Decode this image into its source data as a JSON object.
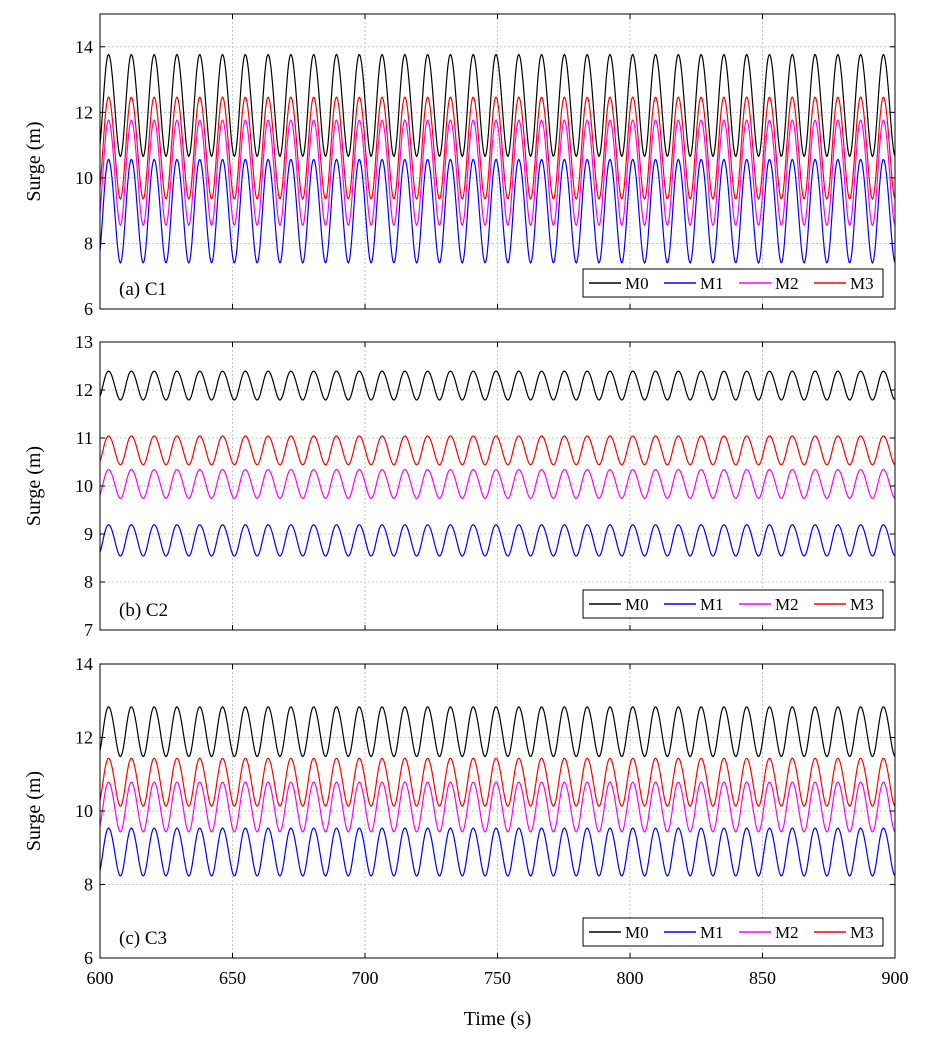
{
  "chart_data": [
    {
      "type": "line",
      "panel_label": "(a) C1",
      "ylabel": "Surge (m)",
      "xlabel": "",
      "xlim": [
        600,
        900
      ],
      "ylim": [
        6,
        15
      ],
      "xticks": [
        "600",
        "650",
        "700",
        "750",
        "800",
        "850",
        "900"
      ],
      "yticks": [
        "6",
        "8",
        "10",
        "12",
        "14"
      ],
      "legend": [
        "M0",
        "M1",
        "M2",
        "M3"
      ],
      "legend_position": "bottom-right",
      "period_s": 8.6,
      "series": [
        {
          "name": "M0",
          "color": "#000000",
          "min": 10.7,
          "max": 13.8
        },
        {
          "name": "M1",
          "color": "#0000ff",
          "min": 7.45,
          "max": 10.6
        },
        {
          "name": "M2",
          "color": "#ff00ff",
          "min": 8.6,
          "max": 11.8
        },
        {
          "name": "M3",
          "color": "#ff0000",
          "min": 9.4,
          "max": 12.5
        }
      ]
    },
    {
      "type": "line",
      "panel_label": "(b) C2",
      "ylabel": "Surge (m)",
      "xlabel": "",
      "xlim": [
        600,
        900
      ],
      "ylim": [
        7,
        13
      ],
      "xticks": [
        "600",
        "650",
        "700",
        "750",
        "800",
        "850",
        "900"
      ],
      "yticks": [
        "7",
        "8",
        "9",
        "10",
        "11",
        "12",
        "13"
      ],
      "legend": [
        "M0",
        "M1",
        "M2",
        "M3"
      ],
      "legend_position": "bottom-right",
      "period_s": 8.6,
      "series": [
        {
          "name": "M0",
          "color": "#000000",
          "min": 11.8,
          "max": 12.4
        },
        {
          "name": "M1",
          "color": "#0000ff",
          "min": 8.55,
          "max": 9.2
        },
        {
          "name": "M2",
          "color": "#ff00ff",
          "min": 9.75,
          "max": 10.35
        },
        {
          "name": "M3",
          "color": "#ff0000",
          "min": 10.45,
          "max": 11.05
        }
      ]
    },
    {
      "type": "line",
      "panel_label": "(c) C3",
      "ylabel": "Surge (m)",
      "xlabel": "Time (s)",
      "xlim": [
        600,
        900
      ],
      "ylim": [
        6,
        14
      ],
      "xticks": [
        "600",
        "650",
        "700",
        "750",
        "800",
        "850",
        "900"
      ],
      "yticks": [
        "6",
        "8",
        "10",
        "12",
        "14"
      ],
      "legend": [
        "M0",
        "M1",
        "M2",
        "M3"
      ],
      "legend_position": "bottom-right",
      "period_s": 8.6,
      "series": [
        {
          "name": "M0",
          "color": "#000000",
          "min": 11.5,
          "max": 12.85
        },
        {
          "name": "M1",
          "color": "#0000ff",
          "min": 8.25,
          "max": 9.55
        },
        {
          "name": "M2",
          "color": "#ff00ff",
          "min": 9.45,
          "max": 10.8
        },
        {
          "name": "M3",
          "color": "#ff0000",
          "min": 10.15,
          "max": 11.45
        }
      ]
    }
  ]
}
